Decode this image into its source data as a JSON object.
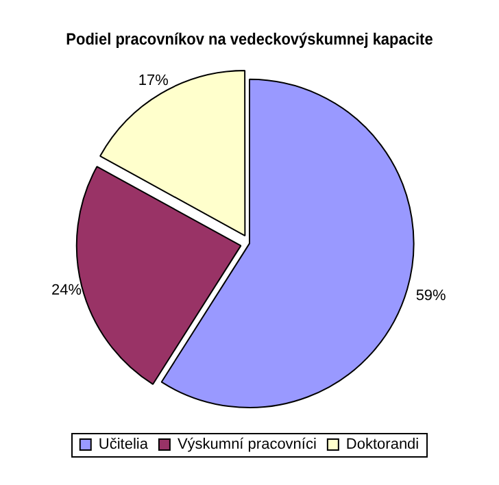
{
  "chart_data": {
    "type": "pie",
    "title": "Podiel pracovníkov na vedeckovýskumnej kapacite",
    "categories": [
      "Učitelia",
      "Výskumní pracovníci",
      "Doktorandi"
    ],
    "values": [
      59,
      24,
      17
    ],
    "colors": [
      "#9999ff",
      "#993366",
      "#ffffcc"
    ],
    "value_labels": [
      "59%",
      "24%",
      "17%"
    ],
    "legend": "bottom"
  }
}
